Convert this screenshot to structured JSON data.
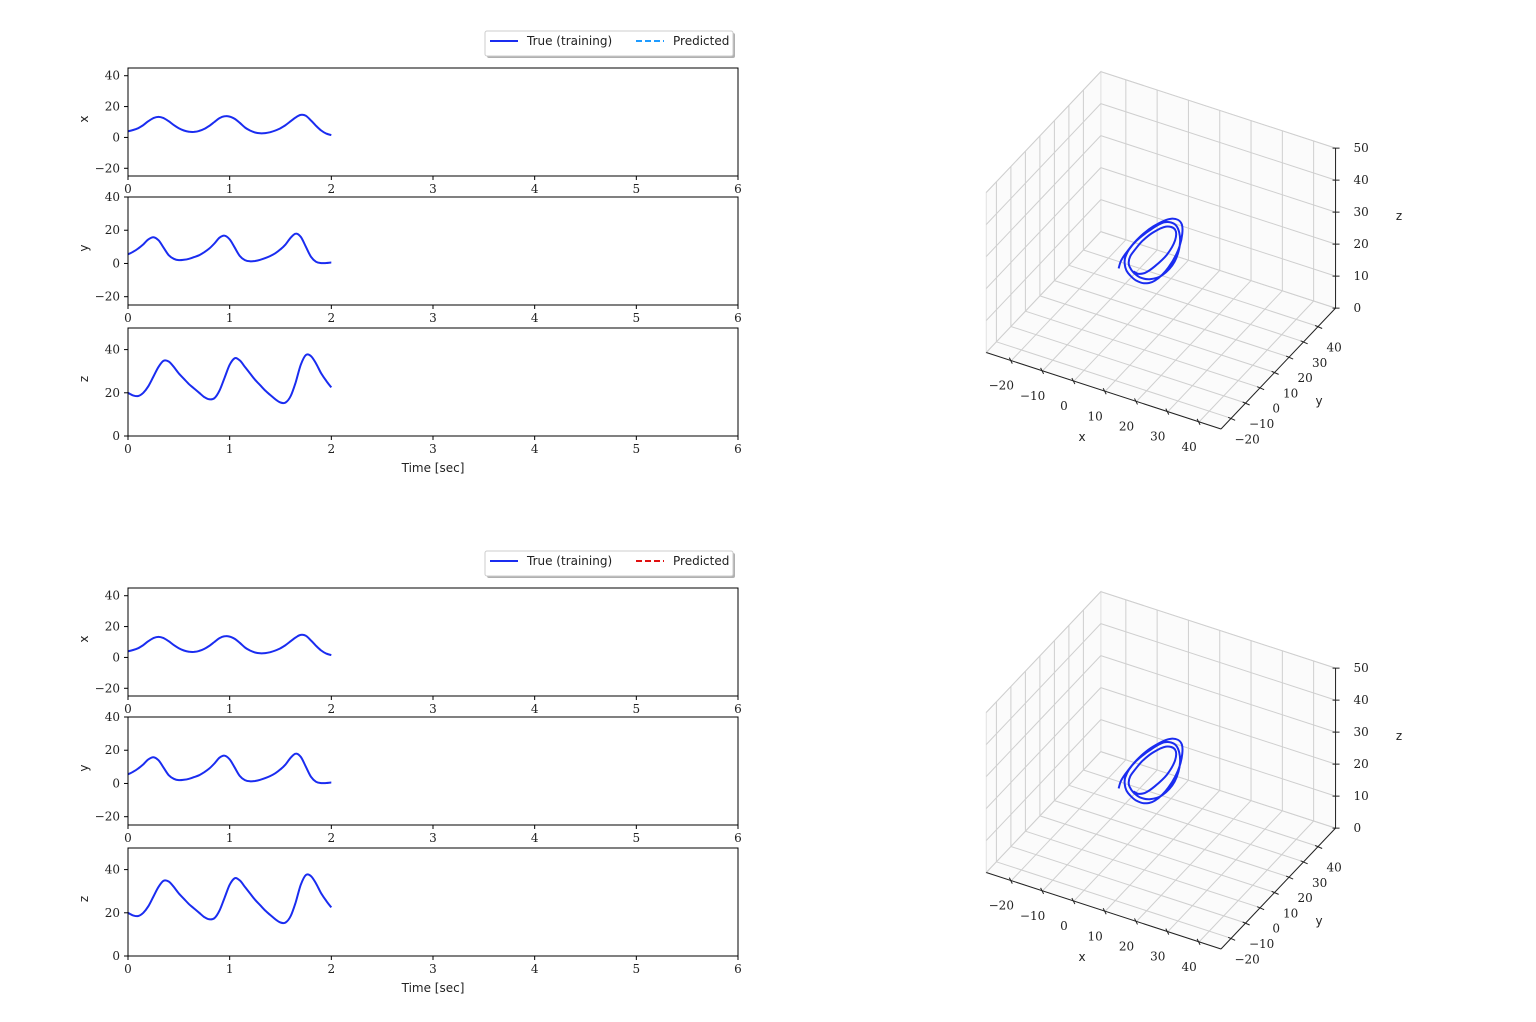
{
  "chart_data": {
    "type": "line",
    "xlabel": "Time [sec]",
    "xlim": [
      0,
      6
    ],
    "xticks": [
      0,
      1,
      2,
      3,
      4,
      5,
      6
    ],
    "grid": false,
    "legend_position": "top-right",
    "t": [
      0,
      0.05,
      0.1,
      0.15,
      0.2,
      0.25,
      0.3,
      0.35,
      0.4,
      0.45,
      0.5,
      0.55,
      0.6,
      0.65,
      0.7,
      0.75,
      0.8,
      0.85,
      0.9,
      0.95,
      1.0,
      1.05,
      1.1,
      1.15,
      1.2,
      1.25,
      1.3,
      1.35,
      1.4,
      1.45,
      1.5,
      1.55,
      1.6,
      1.65,
      1.7,
      1.75,
      1.8,
      1.85,
      1.9,
      1.95,
      2.0
    ],
    "subplots": [
      {
        "ylabel": "x",
        "ylim": [
          -25,
          45
        ],
        "yticks": [
          -20,
          0,
          20,
          40
        ],
        "values": [
          4,
          4.8,
          6,
          8,
          10.5,
          12.5,
          13.3,
          12.5,
          10.5,
          8,
          6,
          4.5,
          3.7,
          3.6,
          4.2,
          5.5,
          7.5,
          10,
          12.5,
          13.7,
          13.5,
          12,
          9.5,
          6.5,
          4.5,
          3.2,
          2.7,
          2.8,
          3.4,
          4.5,
          6,
          8,
          10.5,
          13,
          14.6,
          14,
          11,
          7.5,
          4.5,
          2.5,
          1.5
        ]
      },
      {
        "ylabel": "y",
        "ylim": [
          -25,
          40
        ],
        "yticks": [
          -20,
          0,
          20,
          40
        ],
        "values": [
          5.5,
          7,
          9,
          11.5,
          14.5,
          15.8,
          14,
          9.5,
          5,
          2.8,
          2,
          2.2,
          2.8,
          3.8,
          5,
          6.8,
          9,
          12,
          15.5,
          16.7,
          14.5,
          9.5,
          4.5,
          2,
          1.3,
          1.5,
          2.2,
          3.2,
          4.5,
          6.2,
          8.5,
          11.5,
          15.5,
          18,
          16,
          10,
          4,
          1,
          0.2,
          0.3,
          0.6
        ]
      },
      {
        "ylabel": "z",
        "ylim": [
          0,
          50
        ],
        "yticks": [
          0,
          20,
          40
        ],
        "values": [
          20,
          18.8,
          18.5,
          20,
          23,
          27.5,
          32,
          34.8,
          34.5,
          32,
          29,
          26.5,
          24,
          22,
          20,
          18,
          17,
          17.5,
          21,
          27,
          33,
          36,
          35,
          32,
          29,
          26,
          23.5,
          21,
          19,
          17,
          15.5,
          15.5,
          18.5,
          25,
          33,
          37.5,
          37,
          33.5,
          29,
          25.5,
          22.5
        ]
      }
    ],
    "figures": [
      {
        "legend": [
          {
            "label": "True (training)",
            "color": "#1a2cf0",
            "style": "solid"
          },
          {
            "label": "Predicted",
            "color": "#1e9bff",
            "style": "dashed"
          }
        ]
      },
      {
        "legend": [
          {
            "label": "True (training)",
            "color": "#1a2cf0",
            "style": "solid"
          },
          {
            "label": "Predicted",
            "color": "#e01010",
            "style": "dashed"
          }
        ]
      }
    ],
    "plot3d": {
      "type": "line3d",
      "xlabel": "x",
      "ylabel": "y",
      "zlabel": "z",
      "xlim": [
        -28,
        47
      ],
      "ylim": [
        -27,
        52
      ],
      "zlim": [
        0,
        50
      ],
      "xticks": [
        -20,
        -10,
        0,
        10,
        20,
        30,
        40
      ],
      "yticks": [
        -20,
        -10,
        0,
        10,
        20,
        30,
        40
      ],
      "zticks": [
        0,
        10,
        20,
        30,
        40,
        50
      ],
      "grid": true,
      "line_color": "#1a2cf0"
    }
  }
}
